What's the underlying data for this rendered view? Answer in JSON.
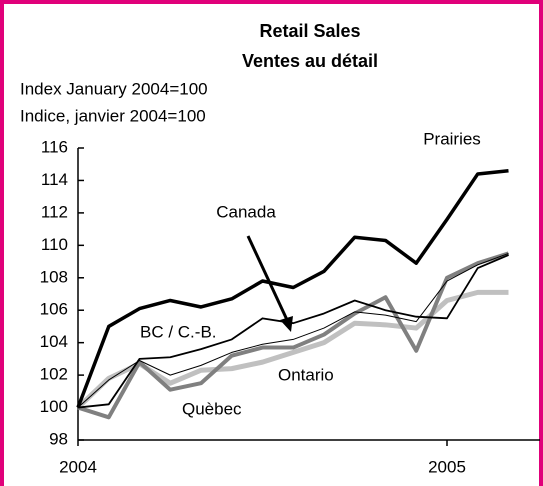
{
  "chart_data": {
    "type": "line",
    "title": "Retail Sales",
    "subtitle": "Ventes au détail",
    "y_label": "Index January 2004=100",
    "y_label_fr": "Indice, janvier 2004=100",
    "categories": [
      "2004",
      null,
      null,
      null,
      null,
      null,
      null,
      null,
      null,
      null,
      null,
      null,
      "2005",
      null,
      null
    ],
    "ylim": [
      98,
      116
    ],
    "yticks": [
      98,
      100,
      102,
      104,
      106,
      108,
      110,
      112,
      114,
      116
    ],
    "grid": false,
    "series": [
      {
        "name": "Prairies",
        "color": "#000000",
        "values": [
          100,
          105,
          106.1,
          106.6,
          106.2,
          106.7,
          107.8,
          107.4,
          108.4,
          110.5,
          110.3,
          108.9,
          111.6,
          114.4,
          114.6
        ]
      },
      {
        "name": "BC / C.-B.",
        "color": "#000000",
        "values": [
          100,
          100.2,
          103,
          103.1,
          103.6,
          104.2,
          105.5,
          105.2,
          105.8,
          106.6,
          106,
          105.6,
          105.5,
          108.6,
          109.4
        ]
      },
      {
        "name": "Canada",
        "color": "#000000",
        "values": [
          100,
          101.7,
          102.9,
          102,
          102.6,
          103.4,
          103.9,
          104.2,
          104.9,
          105.9,
          105.7,
          105.3,
          107.8,
          108.8,
          109.5
        ]
      },
      {
        "name": "Ontario",
        "color": "#c0c0c0",
        "values": [
          100,
          101.8,
          102.7,
          101.5,
          102.3,
          102.4,
          102.8,
          103.4,
          104,
          105.2,
          105.1,
          104.9,
          106.6,
          107.1,
          107.1
        ]
      },
      {
        "name": "Quèbec",
        "color": "#808080",
        "values": [
          100,
          99.4,
          102.8,
          101.1,
          101.5,
          103.2,
          103.7,
          103.7,
          104.5,
          105.8,
          106.8,
          103.5,
          108,
          108.9,
          109.5
        ]
      }
    ]
  }
}
